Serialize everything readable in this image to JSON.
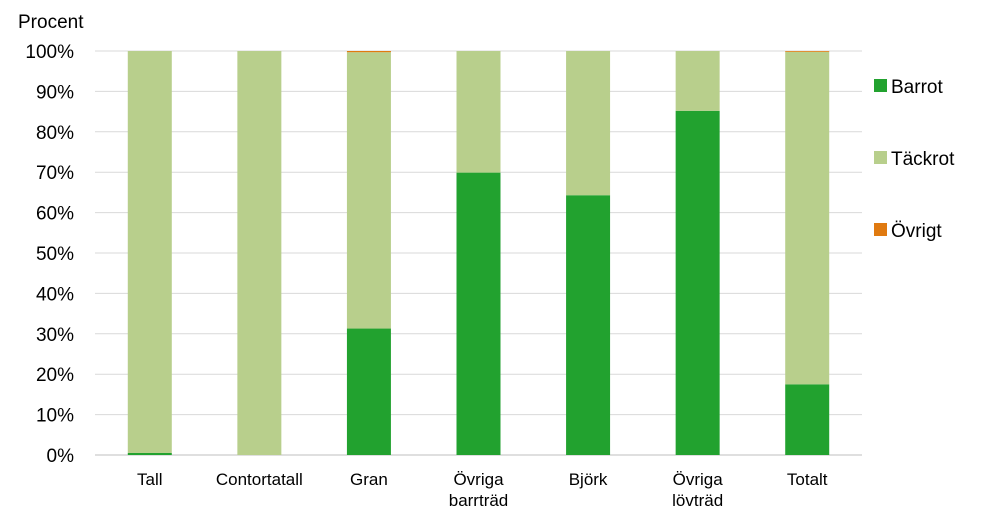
{
  "chart_data": {
    "type": "bar",
    "stacked": true,
    "percent": true,
    "ylabel": "Procent",
    "ylim": [
      0,
      100
    ],
    "yticks": [
      "0%",
      "10%",
      "20%",
      "30%",
      "40%",
      "50%",
      "60%",
      "70%",
      "80%",
      "90%",
      "100%"
    ],
    "categories": [
      [
        "Tall"
      ],
      [
        "Contortatall"
      ],
      [
        "Gran"
      ],
      [
        "Övriga",
        "barrträd"
      ],
      [
        "Björk"
      ],
      [
        "Övriga",
        "lövträd"
      ],
      [
        "Totalt"
      ]
    ],
    "series": [
      {
        "name": "Barrot",
        "color": "#22A22F",
        "values": [
          0.5,
          0,
          31.3,
          69.9,
          64.3,
          85.2,
          17.5
        ]
      },
      {
        "name": "Täckrot",
        "color": "#B8CF8C",
        "values": [
          99.5,
          100,
          68.4,
          30.1,
          35.7,
          14.8,
          82.3
        ]
      },
      {
        "name": "Övrigt",
        "color": "#E07A10",
        "values": [
          0,
          0,
          0.3,
          0,
          0,
          0,
          0.2
        ]
      }
    ],
    "grid": true,
    "legend_position": "right"
  }
}
